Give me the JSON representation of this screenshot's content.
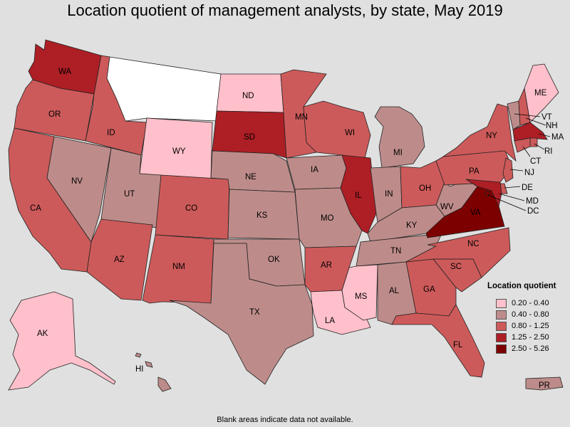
{
  "title": "Location quotient of management analysts, by state, May 2019",
  "footnote": "Blank areas indicate data not available.",
  "colors": {
    "na": "#ffffff",
    "c1": "#ffc0cb",
    "c2": "#bd8c8a",
    "c3": "#cd5a5a",
    "c4": "#ad1e25",
    "c5": "#7d0000"
  },
  "legend": {
    "title": "Location quotient",
    "items": [
      {
        "label": "0.20 - 0.40",
        "color": "#ffc0cb"
      },
      {
        "label": "0.40 - 0.80",
        "color": "#bd8c8a"
      },
      {
        "label": "0.80 - 1.25",
        "color": "#cd5a5a"
      },
      {
        "label": "1.25 - 2.50",
        "color": "#ad1e25"
      },
      {
        "label": "2.50 - 5.26",
        "color": "#7d0000"
      }
    ]
  },
  "states": {
    "WA": {
      "label": "WA",
      "class": "1.25 - 2.50"
    },
    "OR": {
      "label": "OR",
      "class": "0.80 - 1.25"
    },
    "CA": {
      "label": "CA",
      "class": "0.80 - 1.25"
    },
    "ID": {
      "label": "ID",
      "class": "0.80 - 1.25"
    },
    "NV": {
      "label": "NV",
      "class": "0.40 - 0.80"
    },
    "MT": {
      "label": "",
      "class": "n/a"
    },
    "WY": {
      "label": "WY",
      "class": "0.20 - 0.40"
    },
    "UT": {
      "label": "UT",
      "class": "0.40 - 0.80"
    },
    "AZ": {
      "label": "AZ",
      "class": "0.80 - 1.25"
    },
    "CO": {
      "label": "CO",
      "class": "0.80 - 1.25"
    },
    "NM": {
      "label": "NM",
      "class": "0.80 - 1.25"
    },
    "ND": {
      "label": "ND",
      "class": "0.20 - 0.40"
    },
    "SD": {
      "label": "SD",
      "class": "1.25 - 2.50"
    },
    "NE": {
      "label": "NE",
      "class": "0.40 - 0.80"
    },
    "KS": {
      "label": "KS",
      "class": "0.40 - 0.80"
    },
    "OK": {
      "label": "OK",
      "class": "0.40 - 0.80"
    },
    "TX": {
      "label": "TX",
      "class": "0.40 - 0.80"
    },
    "MN": {
      "label": "MN",
      "class": "0.80 - 1.25"
    },
    "IA": {
      "label": "IA",
      "class": "0.40 - 0.80"
    },
    "MO": {
      "label": "MO",
      "class": "0.40 - 0.80"
    },
    "AR": {
      "label": "AR",
      "class": "0.80 - 1.25"
    },
    "LA": {
      "label": "LA",
      "class": "0.20 - 0.40"
    },
    "WI": {
      "label": "WI",
      "class": "0.80 - 1.25"
    },
    "IL": {
      "label": "IL",
      "class": "1.25 - 2.50"
    },
    "MI": {
      "label": "MI",
      "class": "0.40 - 0.80"
    },
    "IN": {
      "label": "IN",
      "class": "0.40 - 0.80"
    },
    "OH": {
      "label": "OH",
      "class": "0.80 - 1.25"
    },
    "KY": {
      "label": "KY",
      "class": "0.40 - 0.80"
    },
    "TN": {
      "label": "TN",
      "class": "0.40 - 0.80"
    },
    "MS": {
      "label": "MS",
      "class": "0.20 - 0.40"
    },
    "AL": {
      "label": "AL",
      "class": "0.40 - 0.80"
    },
    "GA": {
      "label": "GA",
      "class": "0.80 - 1.25"
    },
    "FL": {
      "label": "FL",
      "class": "0.80 - 1.25"
    },
    "SC": {
      "label": "SC",
      "class": "0.80 - 1.25"
    },
    "NC": {
      "label": "NC",
      "class": "0.80 - 1.25"
    },
    "VA": {
      "label": "VA",
      "class": "2.50 - 5.26"
    },
    "WV": {
      "label": "WV",
      "class": "0.40 - 0.80"
    },
    "PA": {
      "label": "PA",
      "class": "0.80 - 1.25"
    },
    "NY": {
      "label": "NY",
      "class": "0.80 - 1.25"
    },
    "VT": {
      "label": "VT",
      "class": "0.40 - 0.80"
    },
    "NH": {
      "label": "NH",
      "class": "0.80 - 1.25"
    },
    "ME": {
      "label": "ME",
      "class": "0.20 - 0.40"
    },
    "MA": {
      "label": "MA",
      "class": "1.25 - 2.50"
    },
    "RI": {
      "label": "RI",
      "class": "0.80 - 1.25"
    },
    "CT": {
      "label": "CT",
      "class": "0.80 - 1.25"
    },
    "NJ": {
      "label": "NJ",
      "class": "0.80 - 1.25"
    },
    "DE": {
      "label": "DE",
      "class": "0.80 - 1.25"
    },
    "MD": {
      "label": "MD",
      "class": "1.25 - 2.50"
    },
    "DC": {
      "label": "DC",
      "class": "2.50 - 5.26"
    },
    "AK": {
      "label": "AK",
      "class": "0.20 - 0.40"
    },
    "HI": {
      "label": "HI",
      "class": "0.40 - 0.80"
    },
    "PR": {
      "label": "PR",
      "class": "0.40 - 0.80"
    }
  }
}
